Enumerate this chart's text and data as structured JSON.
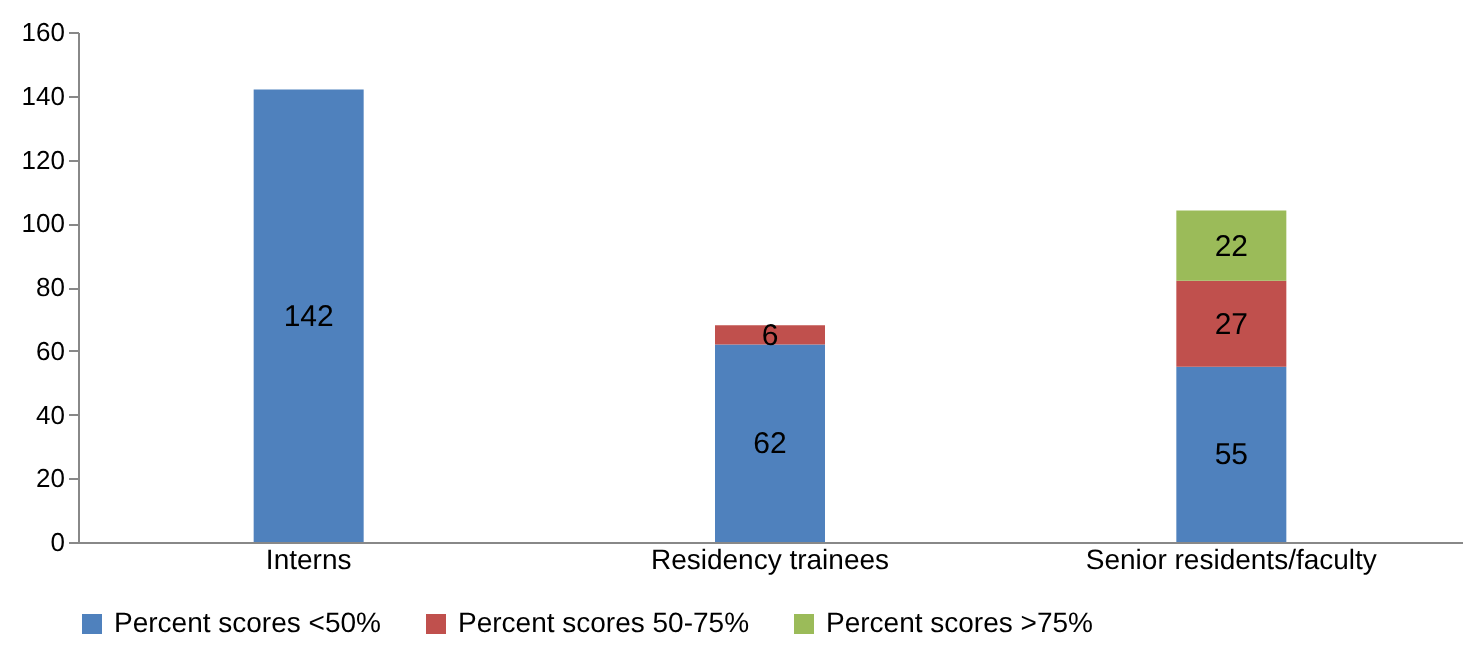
{
  "chart_data": {
    "type": "bar",
    "stacked": true,
    "categories": [
      "Interns",
      "Residency trainees",
      "Senior residents/faculty"
    ],
    "series": [
      {
        "name": "Percent scores <50%",
        "color": "#4f81bd",
        "values": [
          142,
          62,
          55
        ]
      },
      {
        "name": "Percent scores 50-75%",
        "color": "#c0504d",
        "values": [
          null,
          6,
          27
        ]
      },
      {
        "name": "Percent scores >75%",
        "color": "#9bbb59",
        "values": [
          null,
          null,
          22
        ]
      }
    ],
    "ylim": [
      0,
      160
    ],
    "yticks": [
      0,
      20,
      40,
      60,
      80,
      100,
      120,
      140,
      160
    ],
    "grid": false,
    "legend": "bottom",
    "data_labels": true
  }
}
